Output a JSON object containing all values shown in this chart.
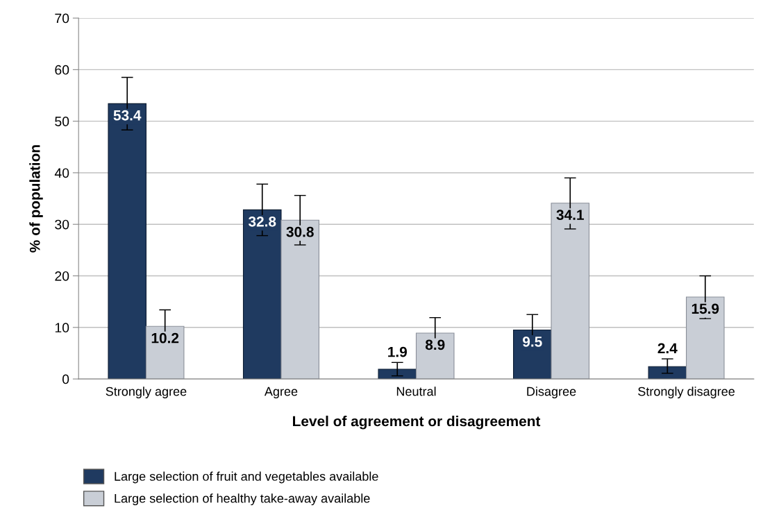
{
  "chart_data": {
    "type": "bar",
    "xlabel": "Level of agreement or disagreement",
    "ylabel": "% of population",
    "categories": [
      "Strongly agree",
      "Agree",
      "Neutral",
      "Disagree",
      "Strongly disagree"
    ],
    "series": [
      {
        "name": "Large selection of fruit and vegetables available",
        "color": "#1f3a60",
        "values": [
          53.4,
          32.8,
          1.9,
          9.5,
          2.4
        ],
        "errors": [
          [
            48.3,
            58.5
          ],
          [
            27.8,
            37.8
          ],
          [
            0.6,
            3.2
          ],
          [
            6.3,
            12.5
          ],
          [
            1.1,
            3.9
          ]
        ]
      },
      {
        "name": "Large selection of healthy take-away available",
        "color": "#c9ced6",
        "values": [
          10.2,
          30.8,
          8.9,
          34.1,
          15.9
        ],
        "errors": [
          [
            7.0,
            13.4
          ],
          [
            26.0,
            35.6
          ],
          [
            5.9,
            11.9
          ],
          [
            29.1,
            39.0
          ],
          [
            11.7,
            20.0
          ]
        ]
      }
    ],
    "ylim": [
      0,
      70
    ],
    "yticks": [
      0,
      10,
      20,
      30,
      40,
      50,
      60,
      70
    ],
    "grid": "y",
    "legend": "bottom left",
    "data_labels": true
  }
}
